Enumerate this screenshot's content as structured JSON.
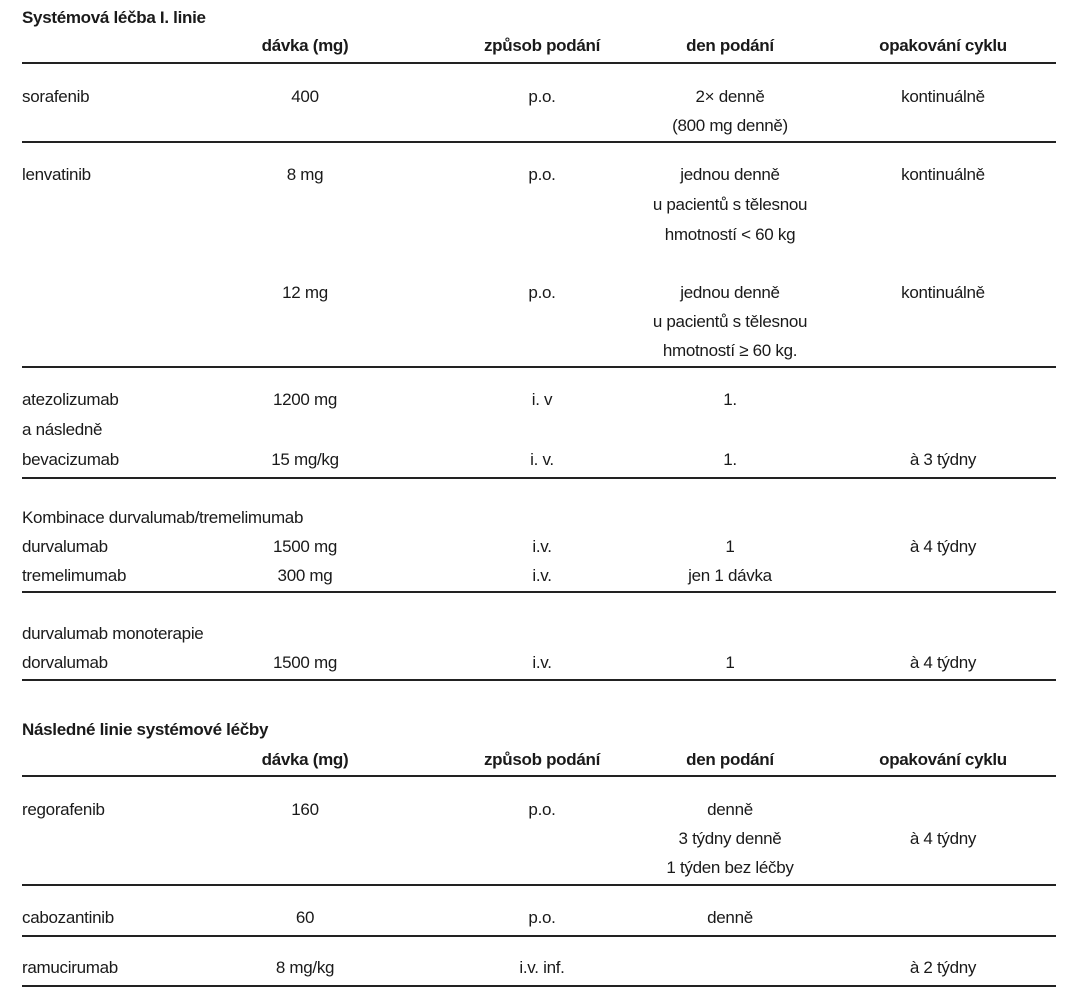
{
  "section1": {
    "title": "Systémová léčba I. linie",
    "headers": {
      "dose": "dávka (mg)",
      "route": "způsob podání",
      "day": "den podání",
      "cycle": "opakování cyklu"
    },
    "sorafenib": {
      "drug": "sorafenib",
      "dose": "400",
      "route": "p.o.",
      "day": [
        "2× denně",
        "(800 mg denně)"
      ],
      "cycle": "kontinuálně"
    },
    "lenvatinib_low": {
      "drug": "lenvatinib",
      "dose": "8 mg",
      "route": "p.o.",
      "day": [
        "jednou denně",
        "u pacientů s tělesnou",
        "hmotností < 60 kg"
      ],
      "cycle": "kontinuálně"
    },
    "lenvatinib_high": {
      "dose": "12 mg",
      "route": "p.o.",
      "day": [
        "jednou denně",
        "u pacientů s tělesnou",
        "hmotností ≥ 60 kg."
      ],
      "cycle": "kontinuálně"
    },
    "atezolizumab": {
      "drug": "atezolizumab",
      "dose": "1200 mg",
      "route": "i. v",
      "day": "1."
    },
    "connector": "a následně",
    "bevacizumab": {
      "drug": "bevacizumab",
      "dose": "15 mg/kg",
      "route": "i. v.",
      "day": "1.",
      "cycle": "à 3 týdny"
    },
    "combo_label": "Kombinace durvalumab/tremelimumab",
    "durvalumab": {
      "drug": "durvalumab",
      "dose": "1500 mg",
      "route": "i.v.",
      "day": "1",
      "cycle": "à 4 týdny"
    },
    "tremelimumab": {
      "drug": "tremelimumab",
      "dose": "300 mg",
      "route": "i.v.",
      "day": "jen 1 dávka"
    },
    "mono_label": "durvalumab monoterapie",
    "dorvalumab": {
      "drug": "dorvalumab",
      "dose": "1500 mg",
      "route": "i.v.",
      "day": "1",
      "cycle": "à 4 týdny"
    }
  },
  "section2": {
    "title": "Následné linie systémové léčby",
    "headers": {
      "dose": "dávka (mg)",
      "route": "způsob podání",
      "day": "den podání",
      "cycle": "opakování cyklu"
    },
    "regorafenib": {
      "drug": "regorafenib",
      "dose": "160",
      "route": "p.o.",
      "day": [
        "denně",
        "3 týdny denně",
        "1 týden bez léčby"
      ],
      "cycle": "à 4 týdny"
    },
    "cabozantinib": {
      "drug": "cabozantinib",
      "dose": "60",
      "route": "p.o.",
      "day": "denně"
    },
    "ramucirumab": {
      "drug": "ramucirumab",
      "dose": "8 mg/kg",
      "route": "i.v. inf.",
      "cycle": "à 2 týdny"
    }
  }
}
